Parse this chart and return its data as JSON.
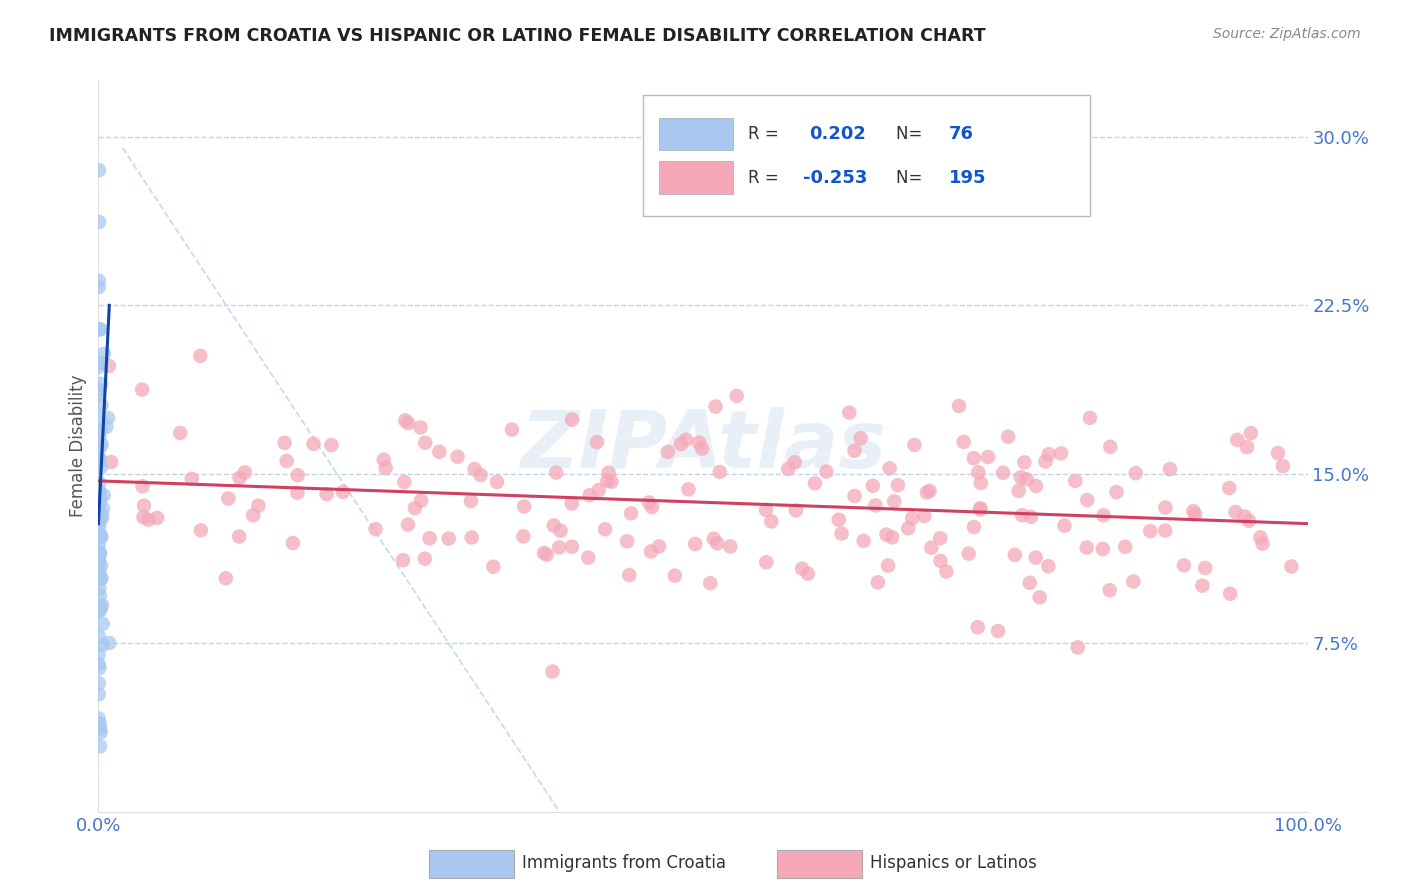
{
  "title": "IMMIGRANTS FROM CROATIA VS HISPANIC OR LATINO FEMALE DISABILITY CORRELATION CHART",
  "source_text": "Source: ZipAtlas.com",
  "ylabel": "Female Disability",
  "xlim": [
    0.0,
    1.0
  ],
  "ylim": [
    0.0,
    0.325
  ],
  "yticks": [
    0.075,
    0.15,
    0.225,
    0.3
  ],
  "ytick_labels": [
    "7.5%",
    "15.0%",
    "22.5%",
    "30.0%"
  ],
  "xtick_labels": [
    "0.0%",
    "100.0%"
  ],
  "color_blue": "#A8C8F0",
  "color_pink": "#F4A8B8",
  "color_blue_line": "#1144AA",
  "color_pink_line": "#D04060",
  "color_diag": "#C0D8F0",
  "R_blue": 0.202,
  "N_blue": 76,
  "R_pink": -0.253,
  "N_pink": 195,
  "background_color": "#FFFFFF",
  "grid_color": "#C0D4E8",
  "legend1_label_short": "Immigrants from Croatia",
  "legend2_label_short": "Hispanics or Latinos",
  "watermark": "ZIPAtlas",
  "title_color": "#222222",
  "source_color": "#888888",
  "tick_color": "#4477CC",
  "blue_trend_x0": 0.0,
  "blue_trend_y0": 0.128,
  "blue_trend_x1": 0.009,
  "blue_trend_y1": 0.225,
  "pink_trend_x0": 0.0,
  "pink_trend_y0": 0.147,
  "pink_trend_x1": 1.0,
  "pink_trend_y1": 0.128
}
